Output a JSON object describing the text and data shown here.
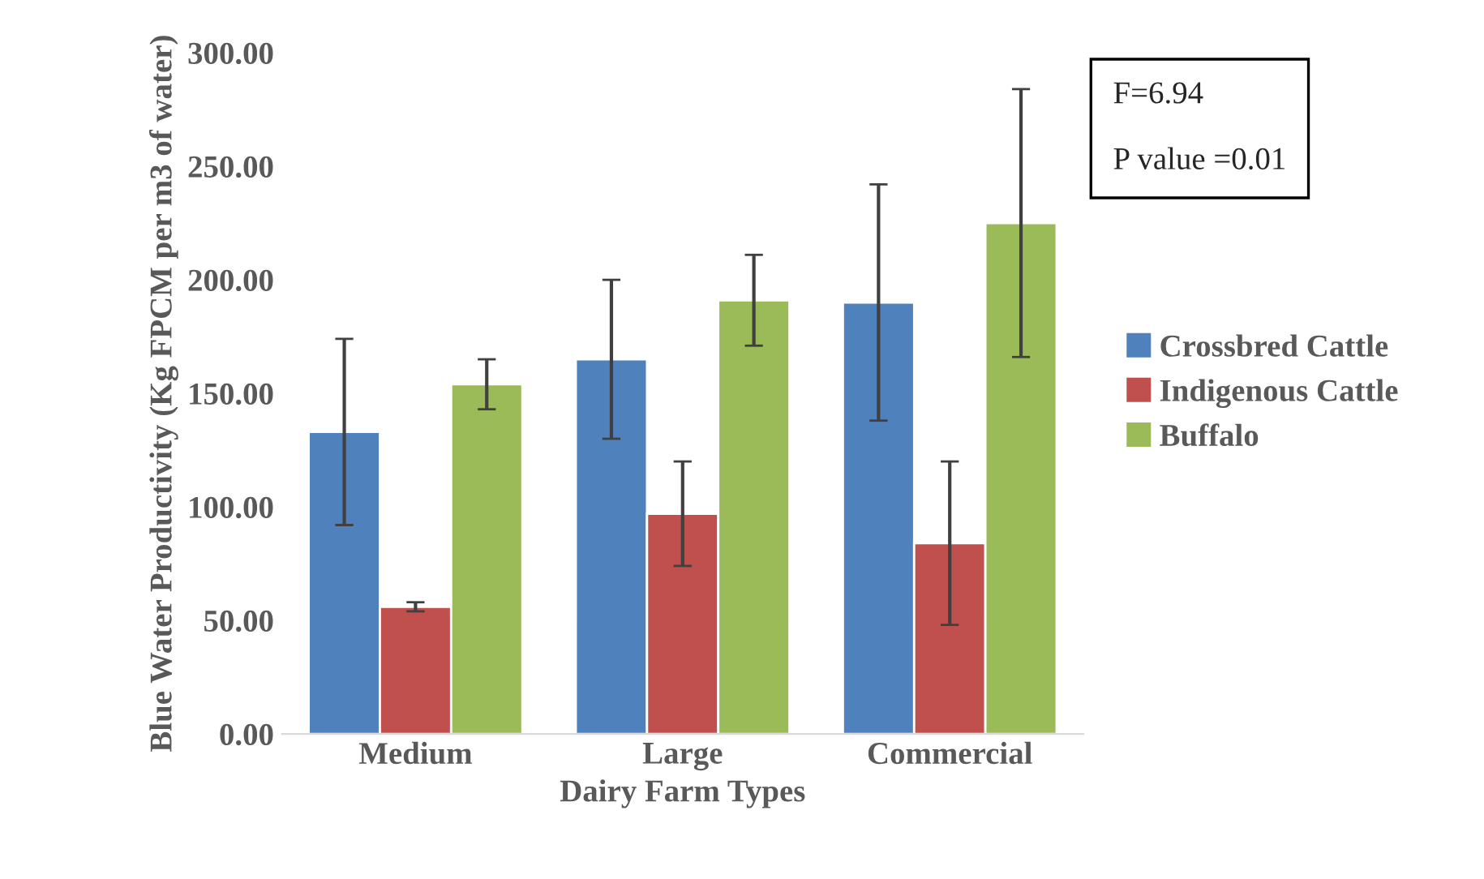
{
  "chart_data": {
    "type": "bar",
    "xlabel": "Dairy Farm Types",
    "ylabel": "Blue Water Productivity (Kg FPCM per m3 of water)",
    "categories": [
      "Medium",
      "Large",
      "Commercial"
    ],
    "series": [
      {
        "name": "Crossbred Cattle",
        "color": "#4f81bd",
        "values": [
          133,
          165,
          190
        ],
        "errors": [
          41,
          35,
          52
        ]
      },
      {
        "name": "Indigenous Cattle",
        "color": "#c0504d",
        "values": [
          56,
          97,
          84
        ],
        "errors": [
          2,
          23,
          36
        ]
      },
      {
        "name": "Buffalo",
        "color": "#9bbb59",
        "values": [
          154,
          191,
          225
        ],
        "errors": [
          11,
          20,
          59
        ]
      }
    ],
    "ylim": [
      0,
      300
    ],
    "yticks": [
      {
        "value": 0,
        "label": "0.00"
      },
      {
        "value": 50,
        "label": "50.00"
      },
      {
        "value": 100,
        "label": "100.00"
      },
      {
        "value": 150,
        "label": "150.00"
      },
      {
        "value": 200,
        "label": "200.00"
      },
      {
        "value": 250,
        "label": "250.00"
      },
      {
        "value": 300,
        "label": "300.00"
      }
    ],
    "annotations": [
      "F=6.94\n\nP value =0.01"
    ],
    "legend": "right",
    "grid": false
  }
}
